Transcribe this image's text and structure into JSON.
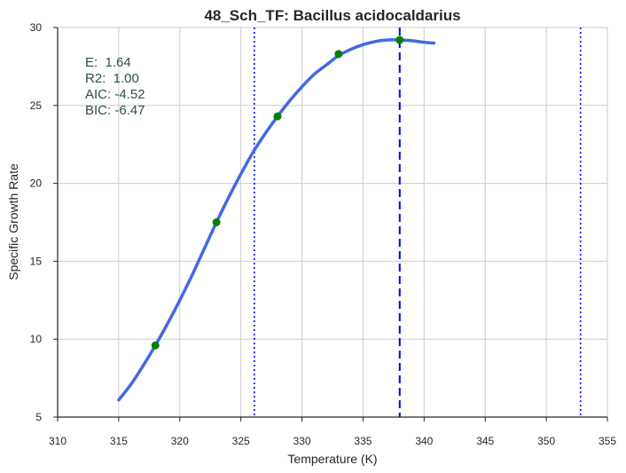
{
  "chart_data": {
    "type": "line",
    "title": "48_Sch_TF: Bacillus acidocaldarius",
    "xlabel": "Temperature (K)",
    "ylabel": "Specific Growth Rate",
    "xlim": [
      310,
      355
    ],
    "ylim": [
      5,
      30
    ],
    "xticks": [
      310,
      315,
      320,
      325,
      330,
      335,
      340,
      345,
      350,
      355
    ],
    "yticks": [
      5,
      10,
      15,
      20,
      25,
      30
    ],
    "grid": true,
    "colors": {
      "fit": "#4169e1",
      "points": "#008000",
      "vlines": "#0000ff",
      "stats": "#2f4f4f"
    },
    "series": [
      {
        "kind": "line",
        "x": [
          315,
          316,
          317,
          318,
          319,
          320,
          321,
          322,
          323,
          324,
          325,
          326,
          327,
          328,
          329,
          330,
          331,
          332,
          333,
          334,
          335,
          336,
          337,
          338,
          339,
          340,
          340.8
        ],
        "y": [
          6.1,
          7.1,
          8.3,
          9.6,
          11.0,
          12.5,
          14.1,
          15.8,
          17.5,
          19.1,
          20.6,
          22.0,
          23.2,
          24.3,
          25.3,
          26.2,
          27.0,
          27.6,
          28.2,
          28.6,
          28.9,
          29.1,
          29.2,
          29.2,
          29.15,
          29.05,
          29.0
        ]
      },
      {
        "kind": "scatter",
        "x": [
          318,
          323,
          328,
          333,
          338
        ],
        "y": [
          9.6,
          17.5,
          24.3,
          28.3,
          29.2
        ]
      }
    ],
    "vlines": [
      {
        "x": 326.1,
        "style": "dotted"
      },
      {
        "x": 338.0,
        "style": "dashed"
      },
      {
        "x": 352.8,
        "style": "dotted"
      }
    ],
    "annotations": [
      "E:  1.64",
      "R2:  1.00",
      "AIC: -4.52",
      "BIC: -6.47"
    ]
  }
}
